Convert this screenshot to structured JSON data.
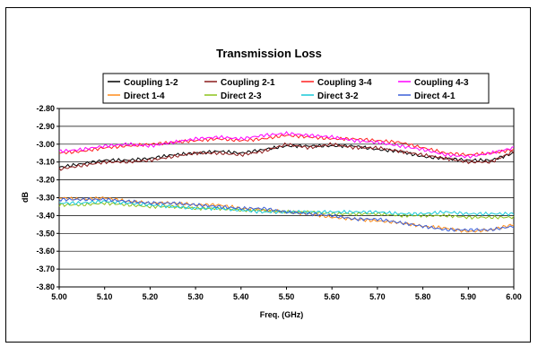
{
  "chart_data": {
    "type": "line",
    "title": "Transmission Loss",
    "xlabel": "Freq. (GHz)",
    "ylabel": "dB",
    "xlim": [
      5.0,
      6.0
    ],
    "ylim": [
      -3.8,
      -2.8
    ],
    "x_ticks": [
      "5.00",
      "5.10",
      "5.20",
      "5.30",
      "5.40",
      "5.50",
      "5.60",
      "5.70",
      "5.80",
      "5.90",
      "6.00"
    ],
    "y_ticks": [
      "-2.80",
      "-2.90",
      "-3.00",
      "-3.10",
      "-3.20",
      "-3.30",
      "-3.40",
      "-3.50",
      "-3.60",
      "-3.70",
      "-3.80"
    ],
    "grid": true,
    "legend_position": "top",
    "series": [
      {
        "name": "Coupling 1-2",
        "color": "#000000",
        "x": [
          5.0,
          5.05,
          5.1,
          5.15,
          5.2,
          5.25,
          5.3,
          5.35,
          5.4,
          5.45,
          5.5,
          5.55,
          5.6,
          5.65,
          5.7,
          5.75,
          5.8,
          5.85,
          5.9,
          5.95,
          6.0
        ],
        "y": [
          -3.13,
          -3.11,
          -3.09,
          -3.09,
          -3.08,
          -3.06,
          -3.05,
          -3.04,
          -3.05,
          -3.03,
          -3.01,
          -3.01,
          -3.01,
          -3.01,
          -3.03,
          -3.04,
          -3.07,
          -3.08,
          -3.09,
          -3.09,
          -3.05
        ]
      },
      {
        "name": "Coupling 2-1",
        "color": "#8b1a1a",
        "x": [
          5.0,
          5.05,
          5.1,
          5.15,
          5.2,
          5.25,
          5.3,
          5.35,
          5.4,
          5.45,
          5.5,
          5.55,
          5.6,
          5.65,
          5.7,
          5.75,
          5.8,
          5.85,
          5.9,
          5.95,
          6.0
        ],
        "y": [
          -3.14,
          -3.12,
          -3.1,
          -3.1,
          -3.09,
          -3.07,
          -3.05,
          -3.05,
          -3.06,
          -3.04,
          -3.0,
          -3.02,
          -3.0,
          -3.02,
          -3.02,
          -3.04,
          -3.06,
          -3.08,
          -3.1,
          -3.1,
          -3.04
        ]
      },
      {
        "name": "Coupling 3-4",
        "color": "#ff2020",
        "x": [
          5.0,
          5.05,
          5.1,
          5.15,
          5.2,
          5.25,
          5.3,
          5.35,
          5.4,
          5.45,
          5.5,
          5.55,
          5.6,
          5.65,
          5.7,
          5.75,
          5.8,
          5.85,
          5.9,
          5.95,
          6.0
        ],
        "y": [
          -3.05,
          -3.04,
          -3.02,
          -3.01,
          -3.0,
          -2.99,
          -2.98,
          -2.97,
          -2.98,
          -2.97,
          -2.95,
          -2.96,
          -2.97,
          -2.97,
          -2.98,
          -2.99,
          -3.02,
          -3.05,
          -3.06,
          -3.05,
          -3.03
        ]
      },
      {
        "name": "Coupling 4-3",
        "color": "#ff00ff",
        "x": [
          5.0,
          5.05,
          5.1,
          5.15,
          5.2,
          5.25,
          5.3,
          5.35,
          5.4,
          5.45,
          5.5,
          5.55,
          5.6,
          5.65,
          5.7,
          5.75,
          5.8,
          5.85,
          5.9,
          5.95,
          6.0
        ],
        "y": [
          -3.04,
          -3.03,
          -3.01,
          -3.0,
          -3.01,
          -2.99,
          -2.97,
          -2.96,
          -2.97,
          -2.95,
          -2.94,
          -2.95,
          -2.96,
          -2.98,
          -2.99,
          -3.01,
          -3.03,
          -3.06,
          -3.07,
          -3.05,
          -3.02
        ]
      },
      {
        "name": "Direct 1-4",
        "color": "#ff8c1a",
        "x": [
          5.0,
          5.05,
          5.1,
          5.15,
          5.2,
          5.25,
          5.3,
          5.35,
          5.4,
          5.45,
          5.5,
          5.55,
          5.6,
          5.65,
          5.7,
          5.75,
          5.8,
          5.85,
          5.9,
          5.95,
          6.0
        ],
        "y": [
          -3.3,
          -3.31,
          -3.3,
          -3.32,
          -3.33,
          -3.33,
          -3.34,
          -3.34,
          -3.36,
          -3.37,
          -3.38,
          -3.39,
          -3.41,
          -3.42,
          -3.43,
          -3.44,
          -3.46,
          -3.47,
          -3.49,
          -3.48,
          -3.45
        ]
      },
      {
        "name": "Direct 2-3",
        "color": "#8cc21a",
        "x": [
          5.0,
          5.05,
          5.1,
          5.15,
          5.2,
          5.25,
          5.3,
          5.35,
          5.4,
          5.45,
          5.5,
          5.55,
          5.6,
          5.65,
          5.7,
          5.75,
          5.8,
          5.85,
          5.9,
          5.95,
          6.0
        ],
        "y": [
          -3.34,
          -3.34,
          -3.33,
          -3.34,
          -3.35,
          -3.35,
          -3.36,
          -3.36,
          -3.37,
          -3.37,
          -3.38,
          -3.38,
          -3.39,
          -3.39,
          -3.39,
          -3.4,
          -3.4,
          -3.4,
          -3.41,
          -3.41,
          -3.41
        ]
      },
      {
        "name": "Direct 3-2",
        "color": "#19c8d8",
        "x": [
          5.0,
          5.05,
          5.1,
          5.15,
          5.2,
          5.25,
          5.3,
          5.35,
          5.4,
          5.45,
          5.5,
          5.55,
          5.6,
          5.65,
          5.7,
          5.75,
          5.8,
          5.85,
          5.9,
          5.95,
          6.0
        ],
        "y": [
          -3.33,
          -3.33,
          -3.32,
          -3.33,
          -3.34,
          -3.35,
          -3.36,
          -3.36,
          -3.37,
          -3.38,
          -3.38,
          -3.38,
          -3.38,
          -3.38,
          -3.38,
          -3.39,
          -3.39,
          -3.38,
          -3.39,
          -3.39,
          -3.39
        ]
      },
      {
        "name": "Direct 4-1",
        "color": "#3a5fd9",
        "x": [
          5.0,
          5.05,
          5.1,
          5.15,
          5.2,
          5.25,
          5.3,
          5.35,
          5.4,
          5.45,
          5.5,
          5.55,
          5.6,
          5.65,
          5.7,
          5.75,
          5.8,
          5.85,
          5.9,
          5.95,
          6.0
        ],
        "y": [
          -3.31,
          -3.31,
          -3.31,
          -3.32,
          -3.33,
          -3.33,
          -3.34,
          -3.35,
          -3.36,
          -3.36,
          -3.38,
          -3.39,
          -3.4,
          -3.42,
          -3.42,
          -3.44,
          -3.46,
          -3.48,
          -3.48,
          -3.48,
          -3.46
        ]
      }
    ]
  }
}
